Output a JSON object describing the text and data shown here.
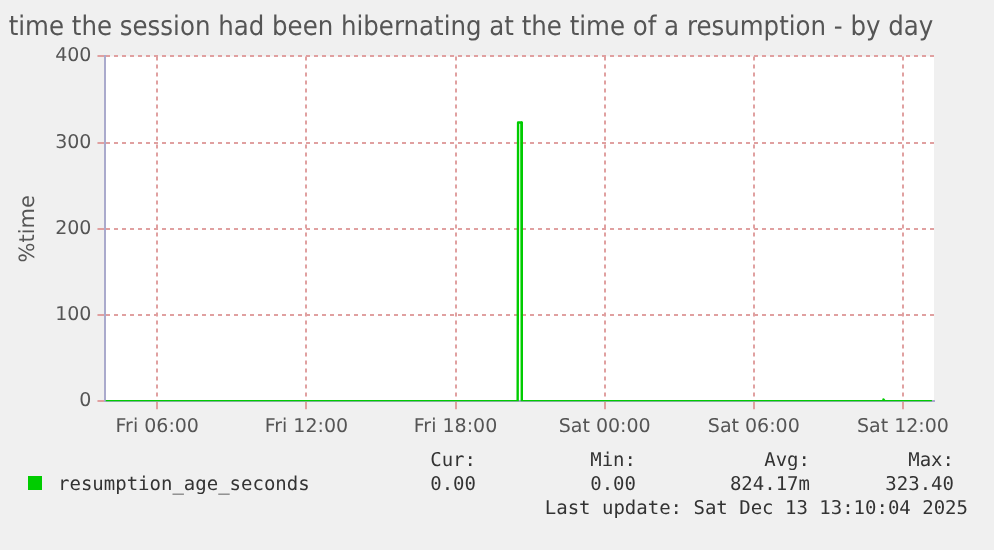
{
  "chart_data": {
    "type": "line",
    "title": "time the session had been hibernating at the time of a resumption - by day",
    "ylabel": "%time",
    "xlim": [
      "2025-12-12T03:55",
      "2025-12-13T13:15"
    ],
    "xticks": [
      {
        "value": "2025-12-12T06:00",
        "label": "Fri 06:00"
      },
      {
        "value": "2025-12-12T12:00",
        "label": "Fri 12:00"
      },
      {
        "value": "2025-12-12T18:00",
        "label": "Fri 18:00"
      },
      {
        "value": "2025-12-13T00:00",
        "label": "Sat 00:00"
      },
      {
        "value": "2025-12-13T06:00",
        "label": "Sat 06:00"
      },
      {
        "value": "2025-12-13T12:00",
        "label": "Sat 12:00"
      }
    ],
    "ylim": [
      0,
      400
    ],
    "yticks": [
      0,
      100,
      200,
      300,
      400
    ],
    "x": [
      "2025-12-12T03:55",
      "2025-12-12T20:30",
      "2025-12-12T20:31",
      "2025-12-12T20:39",
      "2025-12-12T20:40",
      "2025-12-13T11:10",
      "2025-12-13T11:13",
      "2025-12-13T11:16",
      "2025-12-13T13:10"
    ],
    "series": [
      {
        "name": "resumption_age_seconds",
        "color": "#00cc00",
        "values": [
          0,
          0,
          323.4,
          323.4,
          0,
          0,
          2,
          0,
          0
        ]
      }
    ],
    "grid": true,
    "legend": "bottom left",
    "marker": "none",
    "line_style": "solid",
    "annotations": [
      "Cur:",
      "Min:",
      "Avg:",
      "Max:",
      "0.00",
      "0.00",
      "824.17m",
      "323.40",
      "Last update: Sat Dec 13 13:10:04 2025"
    ]
  }
}
